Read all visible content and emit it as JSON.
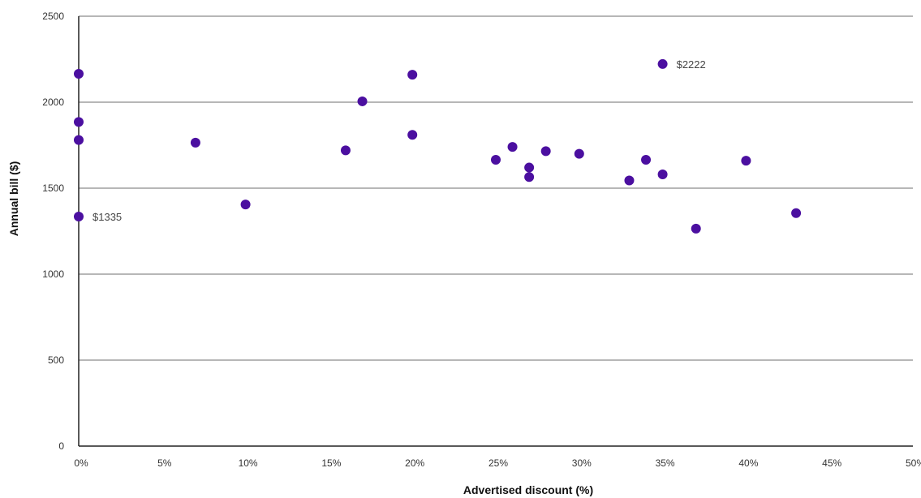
{
  "chart_data": {
    "type": "scatter",
    "title": "",
    "xlabel": "Advertised discount (%)",
    "ylabel": "Annual bill ($)",
    "xlim": [
      0,
      50
    ],
    "ylim": [
      0,
      2500
    ],
    "x_ticks": [
      0,
      5,
      10,
      15,
      20,
      25,
      30,
      35,
      40,
      45,
      50
    ],
    "x_tick_labels": [
      "0%",
      "5%",
      "10%",
      "15%",
      "20%",
      "25%",
      "30%",
      "35%",
      "40%",
      "45%",
      "50%"
    ],
    "y_ticks": [
      0,
      500,
      1000,
      1500,
      2000,
      2500
    ],
    "y_tick_labels": [
      "0",
      "500",
      "1000",
      "1500",
      "2000",
      "2500"
    ],
    "grid": "horizontal",
    "legend": "none",
    "marker_color": "#4b0fa0",
    "points": [
      {
        "x": 0,
        "y": 2165
      },
      {
        "x": 0,
        "y": 1885
      },
      {
        "x": 0,
        "y": 1780
      },
      {
        "x": 0,
        "y": 1335
      },
      {
        "x": 7,
        "y": 1765
      },
      {
        "x": 10,
        "y": 1405
      },
      {
        "x": 16,
        "y": 1720
      },
      {
        "x": 17,
        "y": 2005
      },
      {
        "x": 20,
        "y": 2160
      },
      {
        "x": 20,
        "y": 1810
      },
      {
        "x": 25,
        "y": 1665
      },
      {
        "x": 26,
        "y": 1740
      },
      {
        "x": 27,
        "y": 1620
      },
      {
        "x": 27,
        "y": 1565
      },
      {
        "x": 28,
        "y": 1715
      },
      {
        "x": 30,
        "y": 1700
      },
      {
        "x": 33,
        "y": 1545
      },
      {
        "x": 34,
        "y": 1665
      },
      {
        "x": 35,
        "y": 2222
      },
      {
        "x": 35,
        "y": 1580
      },
      {
        "x": 37,
        "y": 1265
      },
      {
        "x": 40,
        "y": 1660
      },
      {
        "x": 43,
        "y": 1355
      }
    ],
    "annotations": [
      {
        "x": 0,
        "y": 1335,
        "text": "$1335"
      },
      {
        "x": 35,
        "y": 2222,
        "text": "$2222"
      }
    ]
  }
}
